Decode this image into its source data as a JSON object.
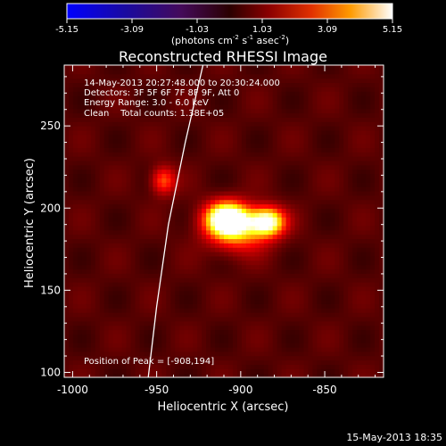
{
  "colorbar": {
    "ticks": [
      "-5.15",
      "-3.09",
      "-1.03",
      "1.03",
      "3.09",
      "5.15"
    ],
    "tick_values": [
      -5.15,
      -3.09,
      -1.03,
      1.03,
      3.09,
      5.15
    ],
    "range": [
      -5.15,
      5.15
    ],
    "units_pre": "(photons cm",
    "units_exp1": "-2",
    "units_mid": " s",
    "units_exp2": "-1",
    "units_mid2": " asec",
    "units_exp3": "-2",
    "units_post": ")"
  },
  "title": "Reconstructed RHESSI Image",
  "info": {
    "line1": "14-May-2013 20:27:48.000 to 20:30:24.000",
    "line2": "Detectors: 3F 5F 6F 7F 8F 9F, Att 0",
    "line3": "Energy Range: 3.0 - 6.0 keV",
    "line4": "Clean    Total counts: 1.38E+05",
    "peak": "Position of Peak = [-908,194]"
  },
  "footer_date": "15-May-2013 18:35",
  "chart_data": {
    "type": "heatmap",
    "title": "Reconstructed RHESSI Image",
    "xlabel": "Heliocentric X (arcsec)",
    "ylabel": "Heliocentric Y (arcsec)",
    "xlim": [
      -1005,
      -815
    ],
    "ylim": [
      97,
      287
    ],
    "x_ticks": [
      -1000,
      -950,
      -900,
      -850
    ],
    "x_tick_labels": [
      "-1000",
      "-950",
      "-900",
      "-850"
    ],
    "y_ticks": [
      100,
      150,
      200,
      250
    ],
    "y_tick_labels": [
      "100",
      "150",
      "200",
      "250"
    ],
    "colormap": "hot",
    "sources": [
      {
        "x": -908,
        "y": 194,
        "sigma_x": 9,
        "sigma_y": 7,
        "peak": 1.0
      },
      {
        "x": -884,
        "y": 192,
        "sigma_x": 7,
        "sigma_y": 6,
        "peak": 0.85
      },
      {
        "x": -901,
        "y": 186,
        "sigma_x": 13,
        "sigma_y": 9,
        "peak": 0.45
      },
      {
        "x": -946,
        "y": 217,
        "sigma_x": 5,
        "sigma_y": 6,
        "peak": 0.42
      }
    ],
    "background_level": 0.2,
    "limb_line": [
      [
        -922,
        289
      ],
      [
        -933,
        240
      ],
      [
        -943,
        190
      ],
      [
        -950,
        140
      ],
      [
        -955,
        97
      ]
    ]
  }
}
